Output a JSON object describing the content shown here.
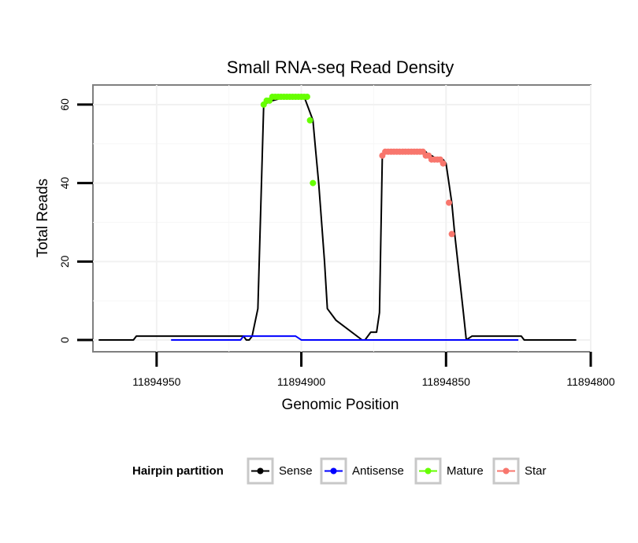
{
  "chart_data": {
    "type": "line",
    "title": "Small RNA-seq Read Density",
    "xlabel": "Genomic Position",
    "ylabel": "Total Reads",
    "xlim": [
      11894972,
      11894800
    ],
    "x_reversed": true,
    "ylim": [
      -3,
      65
    ],
    "x_ticks": [
      11894950,
      11894900,
      11894850,
      11894800
    ],
    "x_tick_labels": [
      "11894950",
      "11894900",
      "11894850",
      "11894800"
    ],
    "y_ticks": [
      0,
      20,
      40,
      60
    ],
    "y_tick_labels": [
      "0",
      "20",
      "40",
      "60"
    ],
    "grid": true,
    "legend_position": "bottom",
    "legend": {
      "title": "Hairpin partition",
      "entries": [
        "Sense",
        "Antisense",
        "Mature",
        "Star"
      ]
    },
    "series": [
      {
        "name": "Sense",
        "color": "#000000",
        "style": "line",
        "x": [
          11894970,
          11894958,
          11894957,
          11894945,
          11894944,
          11894932,
          11894920,
          11894919,
          11894918,
          11894917,
          11894915,
          11894913,
          11894910,
          11894905,
          11894903,
          11894902,
          11894901,
          11894900,
          11894899,
          11894897,
          11894896,
          11894895,
          11894894,
          11894892,
          11894891,
          11894888,
          11894879,
          11894878,
          11894876,
          11894874,
          11894873,
          11894872,
          11894870,
          11894868,
          11894866,
          11894864,
          11894862,
          11894860,
          11894859,
          11894858,
          11894857,
          11894856,
          11894855,
          11894853,
          11894851,
          11894850,
          11894848,
          11894847,
          11894844,
          11894843,
          11894841,
          11894839,
          11894836,
          11894824,
          11894823,
          11894817,
          11894810,
          11894805
        ],
        "y": [
          0,
          0,
          1,
          1,
          1,
          1,
          1,
          0,
          0,
          1,
          8,
          60,
          61,
          62,
          62,
          62,
          62,
          62,
          62,
          58,
          56,
          48,
          40,
          20,
          8,
          5,
          0,
          0,
          2,
          2,
          7,
          47,
          48,
          48,
          48,
          48,
          48,
          48,
          48,
          48,
          48,
          47,
          47,
          46,
          46,
          45,
          35,
          27,
          7,
          0,
          1,
          1,
          1,
          1,
          0,
          0,
          0,
          0
        ]
      },
      {
        "name": "Antisense",
        "color": "#0000FF",
        "style": "line",
        "x": [
          11894945,
          11894921,
          11894920,
          11894908,
          11894904,
          11894902,
          11894900,
          11894880,
          11894860,
          11894840,
          11894825
        ],
        "y": [
          0,
          0,
          1,
          1,
          1,
          1,
          0,
          0,
          0,
          0,
          0
        ]
      },
      {
        "name": "Mature",
        "color": "#66FF00",
        "style": "points",
        "x": [
          11894913,
          11894912,
          11894911,
          11894910,
          11894909,
          11894908,
          11894907,
          11894906,
          11894905,
          11894904,
          11894903,
          11894902,
          11894901,
          11894900,
          11894899,
          11894898,
          11894897,
          11894896
        ],
        "y": [
          60,
          61,
          61,
          62,
          62,
          62,
          62,
          62,
          62,
          62,
          62,
          62,
          62,
          62,
          62,
          62,
          56,
          40
        ]
      },
      {
        "name": "Star",
        "color": "#F8766D",
        "style": "points",
        "x": [
          11894872,
          11894871,
          11894870,
          11894869,
          11894868,
          11894867,
          11894866,
          11894865,
          11894864,
          11894863,
          11894862,
          11894861,
          11894860,
          11894859,
          11894858,
          11894857,
          11894856,
          11894855,
          11894854,
          11894853,
          11894852,
          11894851,
          11894849,
          11894848
        ],
        "y": [
          47,
          48,
          48,
          48,
          48,
          48,
          48,
          48,
          48,
          48,
          48,
          48,
          48,
          48,
          48,
          47,
          47,
          46,
          46,
          46,
          46,
          45,
          35,
          27
        ]
      }
    ]
  }
}
